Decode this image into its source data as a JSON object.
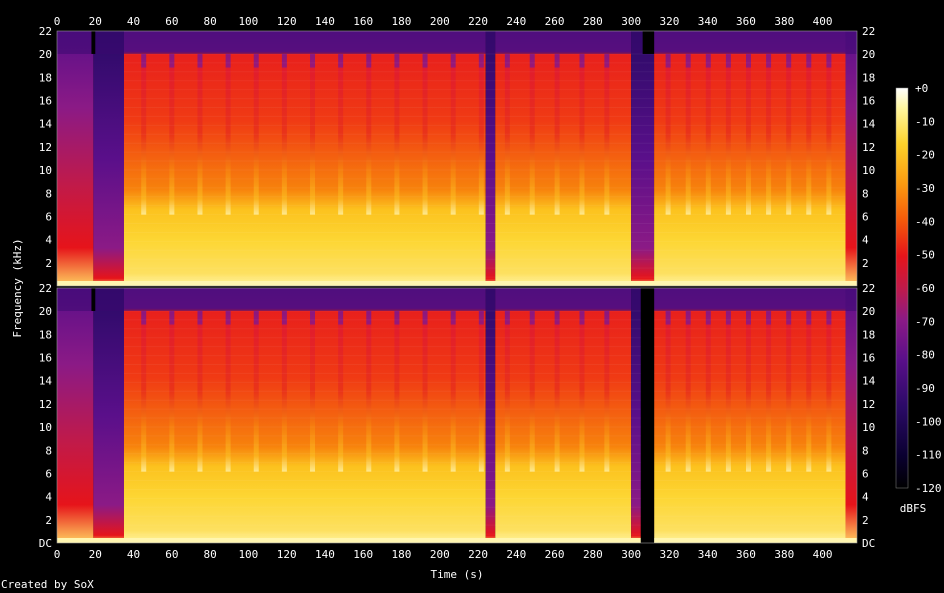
{
  "footer": "Created by SoX",
  "chart_data": {
    "type": "heatmap",
    "xlabel": "Time (s)",
    "ylabel": "Frequency (kHz)",
    "colorbar_label": "dBFS",
    "x_ticks": [
      0,
      20,
      40,
      60,
      80,
      100,
      120,
      140,
      160,
      180,
      200,
      220,
      240,
      260,
      280,
      300,
      320,
      340,
      360,
      380,
      400
    ],
    "xlim": [
      0,
      418
    ],
    "y_ticks_top": [
      "2",
      "4",
      "6",
      "8",
      "10",
      "12",
      "14",
      "16",
      "18",
      "20",
      "22"
    ],
    "y_ticks_bottom": [
      "DC",
      "2",
      "4",
      "6",
      "8",
      "10",
      "12",
      "14",
      "16",
      "18",
      "20",
      "22"
    ],
    "ylim": [
      0,
      22
    ],
    "colorbar_ticks": [
      "+0",
      "-10",
      "-20",
      "-30",
      "-40",
      "-50",
      "-60",
      "-70",
      "-80",
      "-90",
      "-100",
      "-110",
      "-120"
    ],
    "colorbar_range": [
      -120,
      0
    ],
    "channels": 2,
    "colors": {
      "background": "#000000",
      "colormap": [
        "#000000",
        "#0a0030",
        "#2a0a66",
        "#5a0f8a",
        "#8b1a86",
        "#c01a4a",
        "#e6141a",
        "#f55a0a",
        "#fb9a10",
        "#fdd22a",
        "#fff7a0",
        "#ffffff"
      ]
    }
  }
}
